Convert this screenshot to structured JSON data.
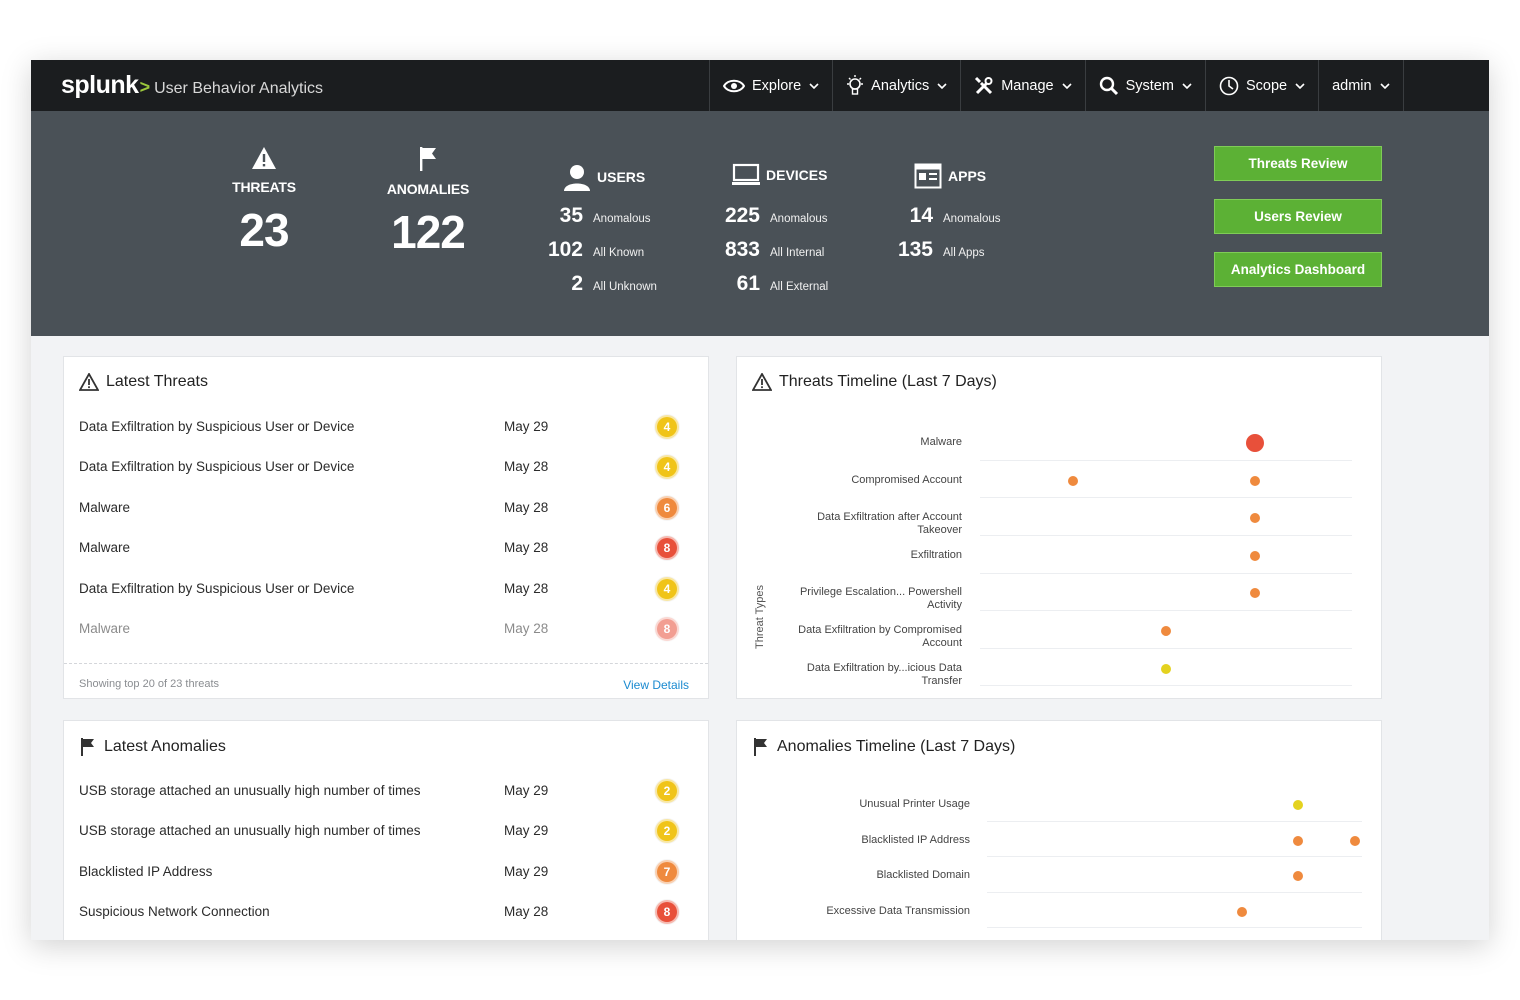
{
  "header": {
    "brand_logo": "splunk",
    "brand_chevron": ">",
    "app_name": "User Behavior Analytics",
    "nav": [
      {
        "label": "Explore",
        "icon": "eye-icon"
      },
      {
        "label": "Analytics",
        "icon": "lightbulb-icon"
      },
      {
        "label": "Manage",
        "icon": "tools-icon"
      },
      {
        "label": "System",
        "icon": "search-icon"
      },
      {
        "label": "Scope",
        "icon": "clock-icon"
      },
      {
        "label": "admin",
        "icon": ""
      }
    ]
  },
  "summary": {
    "threats": {
      "label": "THREATS",
      "value": "23"
    },
    "anomalies": {
      "label": "ANOMALIES",
      "value": "122"
    },
    "users": {
      "label": "USERS",
      "rows": [
        {
          "value": "35",
          "text": "Anomalous"
        },
        {
          "value": "102",
          "text": "All Known"
        },
        {
          "value": "2",
          "text": "All Unknown"
        }
      ]
    },
    "devices": {
      "label": "DEVICES",
      "rows": [
        {
          "value": "225",
          "text": "Anomalous"
        },
        {
          "value": "833",
          "text": "All Internal"
        },
        {
          "value": "61",
          "text": "All External"
        }
      ]
    },
    "apps": {
      "label": "APPS",
      "rows": [
        {
          "value": "14",
          "text": "Anomalous"
        },
        {
          "value": "135",
          "text": "All Apps"
        }
      ]
    },
    "buttons": {
      "threats_review": "Threats Review",
      "users_review": "Users Review",
      "analytics_dashboard": "Analytics Dashboard"
    }
  },
  "latest_threats": {
    "title": "Latest Threats",
    "rows": [
      {
        "name": "Data Exfiltration by Suspicious User or Device",
        "date": "May 29",
        "score": "4",
        "color": "#f0c419"
      },
      {
        "name": "Data Exfiltration by Suspicious User or Device",
        "date": "May 28",
        "score": "4",
        "color": "#f0c419"
      },
      {
        "name": "Malware",
        "date": "May 28",
        "score": "6",
        "color": "#ef8a3e"
      },
      {
        "name": "Malware",
        "date": "May 28",
        "score": "8",
        "color": "#e8503a"
      },
      {
        "name": "Data Exfiltration by Suspicious User or Device",
        "date": "May 28",
        "score": "4",
        "color": "#f0c419"
      },
      {
        "name": "Malware",
        "date": "May 28",
        "score": "8",
        "color": "#e8503a"
      }
    ],
    "footer_info": "Showing top 20 of 23 threats",
    "footer_link": "View Details"
  },
  "threats_timeline": {
    "title": "Threats Timeline (Last 7 Days)",
    "axis_title": "Threat Types",
    "rows": [
      {
        "label": "Malware",
        "dots": [
          {
            "pos": 0.74,
            "size": 18,
            "color": "#e8503a"
          }
        ]
      },
      {
        "label": "Compromised Account",
        "dots": [
          {
            "pos": 0.25,
            "size": 10,
            "color": "#ef8a3e"
          },
          {
            "pos": 0.74,
            "size": 10,
            "color": "#ef8a3e"
          }
        ]
      },
      {
        "label": "Data Exfiltration after Account Takeover",
        "dots": [
          {
            "pos": 0.74,
            "size": 10,
            "color": "#ef8a3e"
          }
        ]
      },
      {
        "label": "Exfiltration",
        "dots": [
          {
            "pos": 0.74,
            "size": 10,
            "color": "#ef8a3e"
          }
        ]
      },
      {
        "label": "Privilege Escalation... Powershell Activity",
        "dots": [
          {
            "pos": 0.74,
            "size": 10,
            "color": "#ef8a3e"
          }
        ]
      },
      {
        "label": "Data Exfiltration by Compromised Account",
        "dots": [
          {
            "pos": 0.5,
            "size": 10,
            "color": "#ef8a3e"
          }
        ]
      },
      {
        "label": "Data Exfiltration by...icious Data Transfer",
        "dots": [
          {
            "pos": 0.5,
            "size": 10,
            "color": "#e4d21f"
          }
        ]
      }
    ]
  },
  "latest_anomalies": {
    "title": "Latest Anomalies",
    "rows": [
      {
        "name": "USB storage attached an unusually high number of times",
        "date": "May 29",
        "score": "2",
        "color": "#f0c419"
      },
      {
        "name": "USB storage attached an unusually high number of times",
        "date": "May 29",
        "score": "2",
        "color": "#f0c419"
      },
      {
        "name": "Blacklisted IP Address",
        "date": "May 29",
        "score": "7",
        "color": "#ef8a3e"
      },
      {
        "name": "Suspicious Network Connection",
        "date": "May 28",
        "score": "8",
        "color": "#e8503a"
      }
    ]
  },
  "anomalies_timeline": {
    "title": "Anomalies Timeline (Last 7 Days)",
    "rows": [
      {
        "label": "Unusual Printer Usage",
        "dots": [
          {
            "pos": 0.83,
            "size": 10,
            "color": "#e4d21f"
          }
        ]
      },
      {
        "label": "Blacklisted IP Address",
        "dots": [
          {
            "pos": 0.83,
            "size": 10,
            "color": "#ef8a3e"
          },
          {
            "pos": 0.98,
            "size": 10,
            "color": "#ef8a3e"
          }
        ]
      },
      {
        "label": "Blacklisted Domain",
        "dots": [
          {
            "pos": 0.83,
            "size": 10,
            "color": "#ef8a3e"
          }
        ]
      },
      {
        "label": "Excessive Data Transmission",
        "dots": [
          {
            "pos": 0.68,
            "size": 10,
            "color": "#ef8a3e"
          }
        ]
      }
    ]
  },
  "colors": {
    "topbar": "#1b1d1f",
    "summary_band": "#4a5157",
    "accent_green": "#5cb135",
    "link_blue": "#1a8ad0"
  }
}
